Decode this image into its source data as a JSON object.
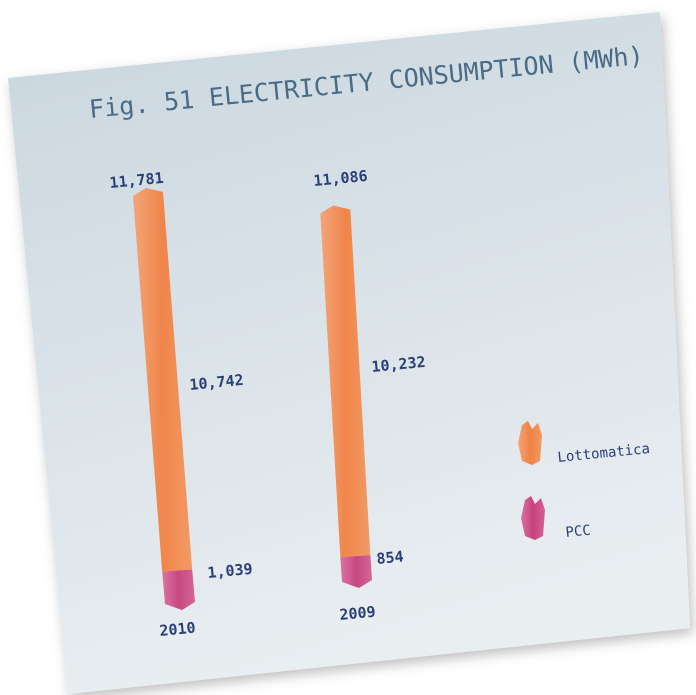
{
  "colors": {
    "card_top": "#c9d6de",
    "card_bottom": "#e9eef1",
    "title": "#4a6b86",
    "labels": "#2b3f77",
    "lottomatica": "#f17d3c",
    "pcc": "#c53a78"
  },
  "chart_data": {
    "type": "bar",
    "title": "Fig. 51 ELECTRICITY CONSUMPTION (MWh)",
    "categories": [
      "2010",
      "2009"
    ],
    "stacked": true,
    "series": [
      {
        "name": "Lottomatica",
        "values": [
          10742,
          10232
        ]
      },
      {
        "name": "PCC",
        "values": [
          1039,
          854
        ]
      }
    ],
    "totals": [
      11781,
      11086
    ],
    "value_labels": {
      "totals": [
        "11,781",
        "11,086"
      ],
      "Lottomatica": [
        "10,742",
        "10,232"
      ],
      "PCC": [
        "1,039",
        "854"
      ]
    },
    "legend": {
      "position": "right",
      "items": [
        "Lottomatica",
        "PCC"
      ]
    },
    "ylim": [
      0,
      11781
    ],
    "grid": false
  }
}
